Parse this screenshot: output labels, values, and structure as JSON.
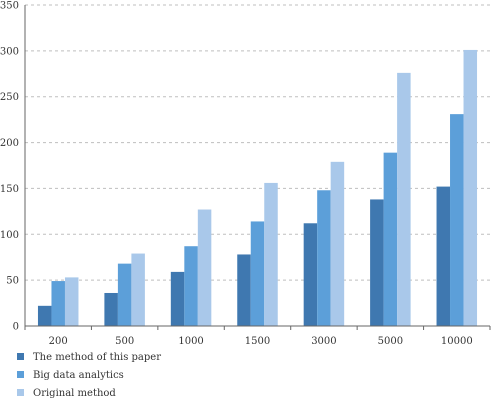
{
  "chart_data": {
    "type": "bar",
    "categories": [
      "200",
      "500",
      "1000",
      "1500",
      "3000",
      "5000",
      "10000"
    ],
    "series": [
      {
        "name": "The method of this paper",
        "values": [
          22,
          36,
          59,
          78,
          112,
          138,
          152
        ]
      },
      {
        "name": "Big data analytics",
        "values": [
          49,
          68,
          87,
          114,
          148,
          189,
          231
        ]
      },
      {
        "name": "Original method",
        "values": [
          53,
          79,
          127,
          156,
          179,
          276,
          301
        ]
      }
    ],
    "ylim": [
      0,
      350
    ],
    "yticks": [
      "0",
      "50",
      "100",
      "150",
      "200",
      "250",
      "300",
      "350"
    ],
    "grid": true,
    "legend_position": "bottom-left",
    "colors": [
      "#3f78b0",
      "#5c9fd9",
      "#a9c8ea"
    ]
  }
}
